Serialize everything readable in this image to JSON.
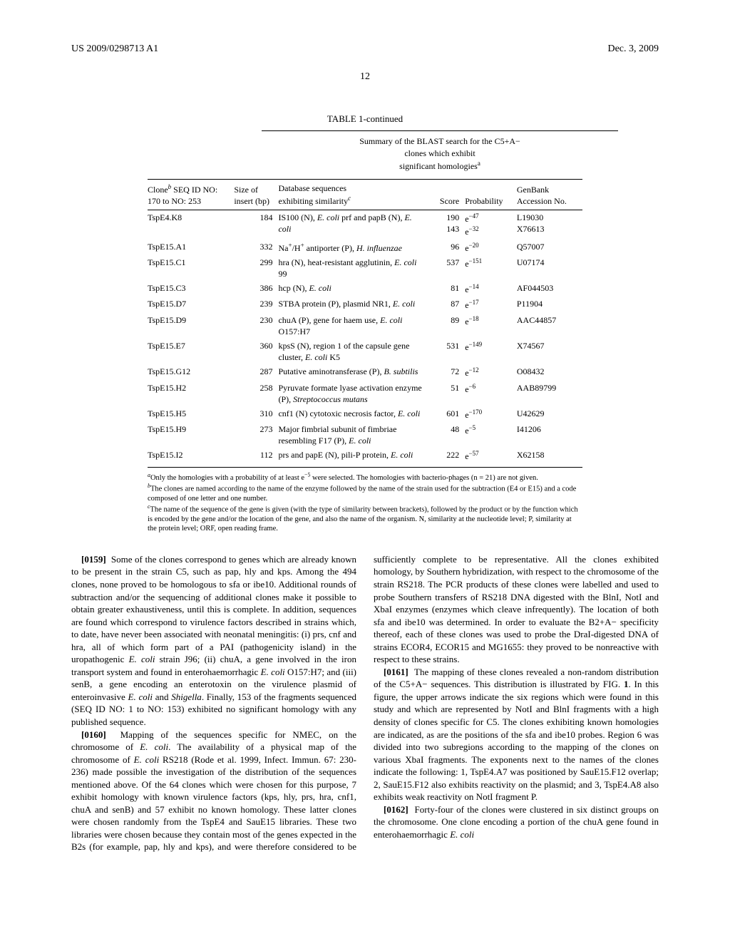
{
  "header": {
    "left": "US 2009/0298713 A1",
    "right": "Dec. 3, 2009"
  },
  "page_number": "12",
  "table": {
    "title": "TABLE 1-continued",
    "caption_line1": "Summary of the BLAST search for the C5+A− clones which exhibit",
    "caption_line2": "significant homologies",
    "caption_sup": "a",
    "headers": {
      "clone_line1": "Clone",
      "clone_sup": "b",
      "clone_line2": " SEQ ID NO:",
      "clone_line3": "170 to NO: 253",
      "size_line1": "Size of",
      "size_line2": "insert (bp)",
      "db_line1": "Database sequences",
      "db_line2": "exhibiting similarity",
      "db_sup": "c",
      "score": "Score",
      "prob": "Probability",
      "acc_line1": "GenBank",
      "acc_line2": "Accession No."
    },
    "rows": [
      {
        "clone": "TspE4.K8",
        "size": "184",
        "db": "IS100 (N), <span class='ital'>E. coli</span> prf and papB (N), <span class='ital'>E. coli</span>",
        "score": "190<br>143",
        "prob": "e<sup>−47</sup><br>e<sup>−32</sup>",
        "acc": "L19030<br>X76613"
      },
      {
        "clone": "TspE15.A1",
        "size": "332",
        "db": "Na<sup>+</sup>/H<sup>+</sup> antiporter (P), <span class='ital'>H. influenzae</span>",
        "score": "96",
        "prob": "e<sup>−20</sup>",
        "acc": "Q57007"
      },
      {
        "clone": "TspE15.C1",
        "size": "299",
        "db": "hra (N), heat-resistant agglutinin, <span class='ital'>E. coli</span> 99",
        "score": "537",
        "prob": "e<sup>−151</sup>",
        "acc": "U07174"
      },
      {
        "clone": "TspE15.C3",
        "size": "386",
        "db": "hcp (N), <span class='ital'>E. coli</span>",
        "score": "81",
        "prob": "e<sup>−14</sup>",
        "acc": "AF044503"
      },
      {
        "clone": "TspE15.D7",
        "size": "239",
        "db": "STBA protein (P), plasmid NR1, <span class='ital'>E. coli</span>",
        "score": "87",
        "prob": "e<sup>−17</sup>",
        "acc": "P11904"
      },
      {
        "clone": "TspE15.D9",
        "size": "230",
        "db": "chuA (P), gene for haem use, <span class='ital'>E. coli</span> O157:H7",
        "score": "89",
        "prob": "e<sup>−18</sup>",
        "acc": "AAC44857"
      },
      {
        "clone": "TspE15.E7",
        "size": "360",
        "db": "kpsS (N), region 1 of the capsule gene cluster, <span class='ital'>E. coli</span> K5",
        "score": "531",
        "prob": "e<sup>−149</sup>",
        "acc": "X74567"
      },
      {
        "clone": "TspE15.G12",
        "size": "287",
        "db": "Putative aminotransferase (P), <span class='ital'>B. subtilis</span>",
        "score": "72",
        "prob": "e<sup>−12</sup>",
        "acc": "O08432"
      },
      {
        "clone": "TspE15.H2",
        "size": "258",
        "db": "Pyruvate formate lyase activation enzyme (P), <span class='ital'>Streptococcus mutans</span>",
        "score": "51",
        "prob": "e<sup>−6</sup>",
        "acc": "AAB89799"
      },
      {
        "clone": "TspE15.H5",
        "size": "310",
        "db": "cnf1 (N) cytotoxic necrosis factor, <span class='ital'>E. coli</span>",
        "score": "601",
        "prob": "e<sup>−170</sup>",
        "acc": "U42629"
      },
      {
        "clone": "TspE15.H9",
        "size": "273",
        "db": "Major fimbrial subunit of fimbriae resembling F17 (P), <span class='ital'>E. coli</span>",
        "score": "48",
        "prob": "e<sup>−5</sup>",
        "acc": "I41206"
      },
      {
        "clone": "TspE15.I2",
        "size": "112",
        "db": "prs and papE (N), pili-P protein, <span class='ital'>E. coli</span>",
        "score": "222",
        "prob": "e<sup>−57</sup>",
        "acc": "X62158"
      }
    ],
    "footnotes": {
      "a": "Only the homologies with a probability of at least e<sup>−5</sup> were selected. The homologies with bacterio-phages (n = 21) are not given.",
      "b": "The clones are named according to the name of the enzyme followed by the name of the strain used for the subtraction (E4 or E15) and a code composed of one letter and one number.",
      "c": "The name of the sequence of the gene is given (with the type of similarity between brackets), followed by the product or by the function which is encoded by the gene and/or the location of the gene, and also the name of the organism. N, similarity at the nucleotide level; P, similarity at the protein level; ORF, open reading frame."
    }
  },
  "paragraphs": {
    "p0159": "Some of the clones correspond to genes which are already known to be present in the strain C5, such as pap, hly and kps. Among the 494 clones, none proved to be homologous to sfa or ibe10. Additional rounds of subtraction and/or the sequencing of additional clones make it possible to obtain greater exhaustiveness, until this is complete. In addition, sequences are found which correspond to virulence factors described in strains which, to date, have never been associated with neonatal meningitis: (i) prs, cnf and hra, all of which form part of a PAI (pathogenicity island) in the uropathogenic <span class='ital'>E. coli</span> strain J96; (ii) chuA, a gene involved in the iron transport system and found in enterohaemorrhagic <span class='ital'>E. coli</span> O157:H7; and (iii) senB, a gene encoding an enterotoxin on the virulence plasmid of enteroinvasive <span class='ital'>E. coli</span> and <span class='ital'>Shigella</span>. Finally, 153 of the fragments sequenced (SEQ ID NO: 1 to NO: 153) exhibited no significant homology with any published sequence.",
    "p0160": "Mapping of the sequences specific for NMEC, on the chromosome of <span class='ital'>E. coli</span>. The availability of a physical map of the chromosome of <span class='ital'>E. coli</span> RS218 (Rode et al. 1999, Infect. Immun. 67: 230-236) made possible the investigation of the distribution of the sequences mentioned above. Of the 64 clones which were chosen for this purpose, 7 exhibit homology with known virulence factors (kps, hly, prs, hra, cnf1, chuA and senB) and 57 exhibit no known homology. These latter clones were chosen randomly from the TspE4 and SauE15 libraries. These two libraries were chosen because they contain most of the genes expected in the B2s (for example, pap, hly and kps), and were therefore considered to be sufficiently complete to be representative. All the clones exhibited homology, by Southern hybridization, with respect to the chromosome of the strain RS218. The PCR products of these clones were labelled and used to probe Southern transfers of RS218 DNA digested with the BlnI, NotI and XbaI enzymes (enzymes which cleave infrequently). The location of both sfa and ibe10 was determined. In order to evaluate the B2+A− specificity thereof, each of these clones was used to probe the DraI-digested DNA of strains ECOR4, ECOR15 and MG1655: they proved to be nonreactive with respect to these strains.",
    "p0161": "The mapping of these clones revealed a non-random distribution of the C5+A− sequences. This distribution is illustrated by FIG. <span style='font-weight:bold'>1</span>. In this figure, the upper arrows indicate the six regions which were found in this study and which are represented by NotI and BlnI fragments with a high density of clones specific for C5. The clones exhibiting known homologies are indicated, as are the positions of the sfa and ibe10 probes. Region 6 was divided into two subregions according to the mapping of the clones on various XbaI fragments. The exponents next to the names of the clones indicate the following: 1, TspE4.A7 was positioned by SauE15.F12 overlap; 2, SauE15.F12 also exhibits reactivity on the plasmid; and 3, TspE4.A8 also exhibits weak reactivity on NotI fragment P.",
    "p0162": "Forty-four of the clones were clustered in six distinct groups on the chromosome. One clone encoding a portion of the chuA gene found in enterohaemorrhagic <span class='ital'>E. coli</span>"
  },
  "labels": {
    "p0159_num": "[0159]",
    "p0160_num": "[0160]",
    "p0161_num": "[0161]",
    "p0162_num": "[0162]"
  }
}
